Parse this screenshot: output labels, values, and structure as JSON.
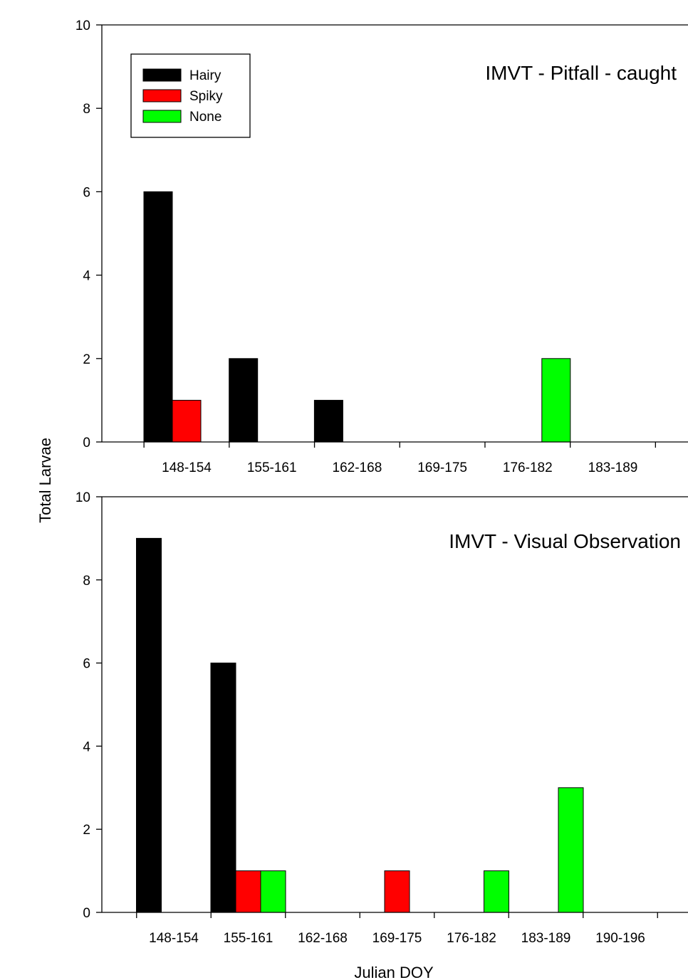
{
  "figure": {
    "y_axis_label": "Total Larvae",
    "x_axis_label": "Julian DOY"
  },
  "chart_data": [
    {
      "type": "bar",
      "title": "IMVT - Pitfall - caught",
      "xlabel": "Julian DOY",
      "ylabel": "Total Larvae",
      "ylim": [
        0,
        10
      ],
      "yticks": [
        0,
        2,
        4,
        6,
        8,
        10
      ],
      "categories": [
        "148-154",
        "155-161",
        "162-168",
        "169-175",
        "176-182",
        "183-189"
      ],
      "series": [
        {
          "name": "Hairy",
          "color": "#000000",
          "values": [
            6,
            2,
            1,
            0,
            0,
            0
          ]
        },
        {
          "name": "Spiky",
          "color": "#ff0000",
          "values": [
            1,
            0,
            0,
            0,
            0,
            0
          ]
        },
        {
          "name": "None",
          "color": "#00ff00",
          "values": [
            0,
            0,
            0,
            0,
            2,
            0
          ]
        }
      ],
      "legend": {
        "position": "top-left",
        "entries": [
          "Hairy",
          "Spiky",
          "None"
        ]
      },
      "grid": false
    },
    {
      "type": "bar",
      "title": "IMVT - Visual Observation",
      "xlabel": "Julian DOY",
      "ylabel": "Total Larvae",
      "ylim": [
        0,
        10
      ],
      "yticks": [
        0,
        2,
        4,
        6,
        8,
        10
      ],
      "categories": [
        "148-154",
        "155-161",
        "162-168",
        "169-175",
        "176-182",
        "183-189",
        "190-196"
      ],
      "series": [
        {
          "name": "Hairy",
          "color": "#000000",
          "values": [
            9,
            6,
            0,
            0,
            0,
            0,
            0
          ]
        },
        {
          "name": "Spiky",
          "color": "#ff0000",
          "values": [
            0,
            1,
            0,
            1,
            0,
            0,
            0
          ]
        },
        {
          "name": "None",
          "color": "#00ff00",
          "values": [
            0,
            1,
            0,
            0,
            1,
            3,
            0
          ]
        }
      ],
      "grid": false
    }
  ]
}
